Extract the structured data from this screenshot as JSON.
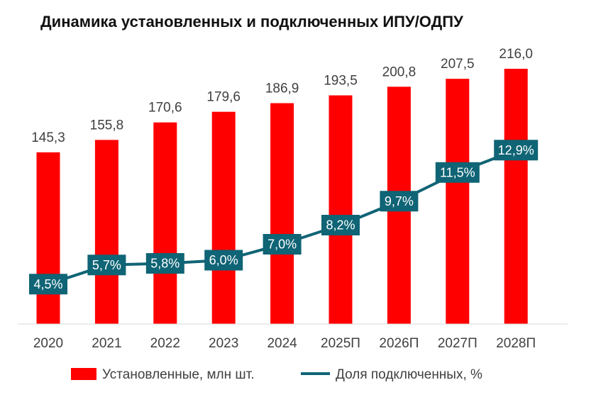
{
  "chart_data": {
    "type": "bar",
    "title": "Динамика установленных и подключенных ИПУ/ОДПУ",
    "categories": [
      "2020",
      "2021",
      "2022",
      "2023",
      "2024",
      "2025П",
      "2026П",
      "2027П",
      "2028П"
    ],
    "series": [
      {
        "name": "Установленные, млн шт.",
        "type": "bar",
        "color": "#ff0000",
        "values": [
          145.3,
          155.8,
          170.6,
          179.6,
          186.9,
          193.5,
          200.8,
          207.5,
          216.0
        ],
        "labels": [
          "145,3",
          "155,8",
          "170,6",
          "179,6",
          "186,9",
          "193,5",
          "200,8",
          "207,5",
          "216,0"
        ]
      },
      {
        "name": "Доля подключенных, %",
        "type": "line",
        "color": "#0f6475",
        "values": [
          4.5,
          5.7,
          5.8,
          6.0,
          7.0,
          8.2,
          9.7,
          11.5,
          12.9
        ],
        "labels": [
          "4,5%",
          "5,7%",
          "5,8%",
          "6,0%",
          "7,0%",
          "8,2%",
          "9,7%",
          "11,5%",
          "12,9%"
        ]
      }
    ],
    "bar_axis_range": [
      0,
      240
    ],
    "line_axis_range": [
      2,
      20
    ],
    "xlabel": "",
    "ylabel": "",
    "grid": false,
    "legend_position": "bottom"
  }
}
